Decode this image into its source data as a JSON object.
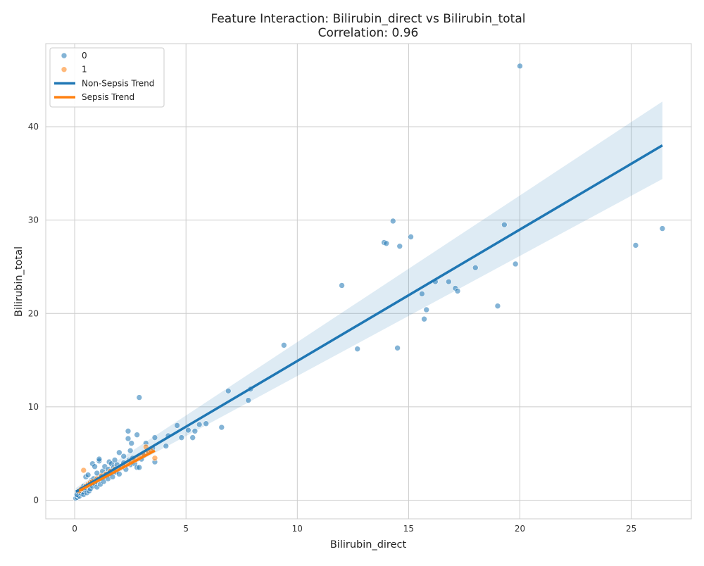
{
  "chart_data": {
    "type": "scatter",
    "title": "Feature Interaction: Bilirubin_direct vs Bilirubin_total",
    "subtitle": "Correlation: 0.96",
    "xlabel": "Bilirubin_direct",
    "ylabel": "Bilirubin_total",
    "xlim": [
      -1.3,
      27.7
    ],
    "ylim": [
      -2.0,
      48.9
    ],
    "xticks": [
      0,
      5,
      10,
      15,
      20,
      25
    ],
    "yticks": [
      0,
      10,
      20,
      30,
      40
    ],
    "grid": true,
    "legend_position": "top-left",
    "legend": [
      {
        "label": "0",
        "kind": "marker",
        "color": "#1f77b4"
      },
      {
        "label": "1",
        "kind": "marker",
        "color": "#ff7f0e"
      },
      {
        "label": "Non-Sepsis Trend",
        "kind": "line",
        "color": "#1f77b4"
      },
      {
        "label": "Sepsis Trend",
        "kind": "line",
        "color": "#ff7f0e"
      }
    ],
    "series": [
      {
        "name": "0",
        "color": "#1f77b4",
        "points": [
          [
            0.05,
            0.2
          ],
          [
            0.1,
            0.3
          ],
          [
            0.15,
            0.5
          ],
          [
            0.2,
            0.4
          ],
          [
            0.1,
            0.6
          ],
          [
            0.2,
            0.8
          ],
          [
            0.25,
            1.0
          ],
          [
            0.3,
            0.7
          ],
          [
            0.3,
            1.2
          ],
          [
            0.35,
            0.9
          ],
          [
            0.4,
            1.5
          ],
          [
            0.4,
            0.6
          ],
          [
            0.45,
            1.1
          ],
          [
            0.5,
            1.3
          ],
          [
            0.5,
            2.5
          ],
          [
            0.55,
            0.8
          ],
          [
            0.6,
            1.6
          ],
          [
            0.6,
            2.7
          ],
          [
            0.65,
            1.0
          ],
          [
            0.7,
            1.9
          ],
          [
            0.7,
            1.2
          ],
          [
            0.75,
            2.1
          ],
          [
            0.8,
            3.9
          ],
          [
            0.8,
            1.5
          ],
          [
            0.85,
            2.3
          ],
          [
            0.9,
            1.8
          ],
          [
            0.9,
            3.6
          ],
          [
            0.95,
            2.0
          ],
          [
            1.0,
            1.4
          ],
          [
            1.0,
            2.9
          ],
          [
            1.05,
            2.2
          ],
          [
            1.1,
            4.2
          ],
          [
            1.1,
            4.4
          ],
          [
            1.15,
            1.7
          ],
          [
            1.2,
            2.5
          ],
          [
            1.25,
            3.1
          ],
          [
            1.3,
            2.0
          ],
          [
            1.35,
            3.6
          ],
          [
            1.4,
            2.7
          ],
          [
            1.5,
            2.3
          ],
          [
            1.5,
            3.3
          ],
          [
            1.55,
            4.1
          ],
          [
            1.6,
            2.9
          ],
          [
            1.65,
            3.9
          ],
          [
            1.7,
            2.5
          ],
          [
            1.75,
            3.5
          ],
          [
            1.8,
            4.3
          ],
          [
            1.85,
            3.0
          ],
          [
            1.9,
            3.8
          ],
          [
            2.0,
            2.8
          ],
          [
            2.0,
            5.1
          ],
          [
            2.1,
            3.6
          ],
          [
            2.2,
            4.7
          ],
          [
            2.2,
            4.0
          ],
          [
            2.3,
            3.3
          ],
          [
            2.4,
            7.4
          ],
          [
            2.4,
            6.6
          ],
          [
            2.45,
            4.3
          ],
          [
            2.5,
            3.8
          ],
          [
            2.5,
            5.3
          ],
          [
            2.55,
            6.1
          ],
          [
            2.6,
            4.5
          ],
          [
            2.7,
            3.9
          ],
          [
            2.8,
            7.0
          ],
          [
            2.8,
            3.5
          ],
          [
            2.9,
            3.5
          ],
          [
            2.9,
            11.0
          ],
          [
            3.0,
            4.4
          ],
          [
            3.1,
            4.8
          ],
          [
            3.2,
            6.1
          ],
          [
            3.3,
            5.3
          ],
          [
            3.5,
            5.6
          ],
          [
            3.6,
            6.7
          ],
          [
            3.6,
            4.1
          ],
          [
            4.1,
            5.8
          ],
          [
            4.2,
            6.9
          ],
          [
            4.6,
            8.0
          ],
          [
            4.8,
            6.7
          ],
          [
            5.1,
            7.5
          ],
          [
            5.3,
            6.7
          ],
          [
            5.4,
            7.4
          ],
          [
            5.6,
            8.1
          ],
          [
            5.9,
            8.2
          ],
          [
            6.6,
            7.8
          ],
          [
            6.9,
            11.7
          ],
          [
            7.8,
            10.7
          ],
          [
            7.9,
            11.9
          ],
          [
            9.4,
            16.6
          ],
          [
            12.0,
            23.0
          ],
          [
            12.7,
            16.2
          ],
          [
            13.9,
            27.6
          ],
          [
            14.0,
            27.5
          ],
          [
            14.3,
            29.9
          ],
          [
            14.5,
            16.3
          ],
          [
            14.6,
            27.2
          ],
          [
            15.1,
            28.2
          ],
          [
            15.6,
            22.1
          ],
          [
            15.7,
            19.4
          ],
          [
            15.8,
            20.4
          ],
          [
            16.2,
            23.4
          ],
          [
            16.8,
            23.4
          ],
          [
            17.1,
            22.7
          ],
          [
            17.2,
            22.4
          ],
          [
            18.0,
            24.9
          ],
          [
            19.0,
            20.8
          ],
          [
            19.3,
            29.5
          ],
          [
            19.8,
            25.3
          ],
          [
            20.0,
            46.5
          ],
          [
            25.2,
            27.3
          ],
          [
            26.4,
            29.1
          ]
        ]
      },
      {
        "name": "1",
        "color": "#ff7f0e",
        "points": [
          [
            0.2,
            1.0
          ],
          [
            0.3,
            1.2
          ],
          [
            0.4,
            3.2
          ],
          [
            0.5,
            1.5
          ],
          [
            0.6,
            1.7
          ],
          [
            0.7,
            1.9
          ],
          [
            0.8,
            2.0
          ],
          [
            1.0,
            2.3
          ],
          [
            1.2,
            2.6
          ],
          [
            1.4,
            2.8
          ],
          [
            1.6,
            3.1
          ],
          [
            1.8,
            3.3
          ],
          [
            2.0,
            3.5
          ],
          [
            2.2,
            3.7
          ],
          [
            2.4,
            3.9
          ],
          [
            2.5,
            4.2
          ],
          [
            2.7,
            4.3
          ],
          [
            2.9,
            4.6
          ],
          [
            3.1,
            4.9
          ],
          [
            3.2,
            5.7
          ],
          [
            3.3,
            5.1
          ],
          [
            3.4,
            5.4
          ],
          [
            3.6,
            4.5
          ]
        ]
      }
    ],
    "trend_lines": [
      {
        "name": "Non-Sepsis Trend",
        "color": "#1f77b4",
        "x": [
          0.05,
          26.4
        ],
        "y": [
          0.9,
          38.0
        ],
        "ci_upper": [
          1.3,
          42.7
        ],
        "ci_lower": [
          0.5,
          34.4
        ]
      },
      {
        "name": "Sepsis Trend",
        "color": "#ff7f0e",
        "x": [
          0.2,
          3.6
        ],
        "y": [
          1.0,
          5.3
        ]
      }
    ]
  }
}
